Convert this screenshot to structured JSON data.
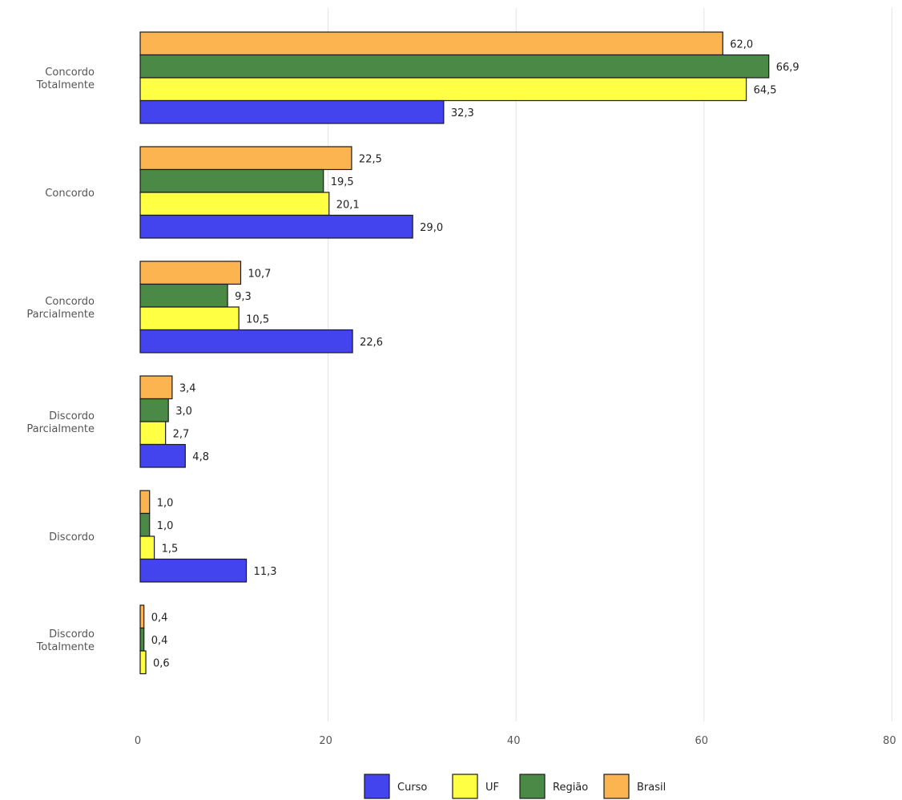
{
  "chart_data": {
    "type": "bar",
    "orientation": "horizontal",
    "categories": [
      [
        "Concordo",
        "Totalmente"
      ],
      [
        "Concordo"
      ],
      [
        "Concordo",
        "Parcialmente"
      ],
      [
        "Discordo",
        "Parcialmente"
      ],
      [
        "Discordo"
      ],
      [
        "Discordo",
        "Totalmente"
      ]
    ],
    "series": [
      {
        "name": "Brasil",
        "color": "#fbb450",
        "values": [
          62.0,
          22.5,
          10.7,
          3.4,
          1.0,
          0.4
        ],
        "labels": [
          "62,0",
          "22,5",
          "10,7",
          "3,4",
          "1,0",
          "0,4"
        ]
      },
      {
        "name": "Região",
        "color": "#4a8a46",
        "values": [
          66.9,
          19.5,
          9.3,
          3.0,
          1.0,
          0.4
        ],
        "labels": [
          "66,9",
          "19,5",
          "9,3",
          "3,0",
          "1,0",
          "0,4"
        ]
      },
      {
        "name": "UF",
        "color": "#ffff44",
        "values": [
          64.5,
          20.1,
          10.5,
          2.7,
          1.5,
          0.6
        ],
        "labels": [
          "64,5",
          "20,1",
          "10,5",
          "2,7",
          "1,5",
          "0,6"
        ]
      },
      {
        "name": "Curso",
        "color": "#4444ee",
        "values": [
          32.3,
          29.0,
          22.6,
          4.8,
          11.3,
          null
        ],
        "labels": [
          "32,3",
          "29,0",
          "22,6",
          "4,8",
          "11,3",
          ""
        ]
      }
    ],
    "xlim": [
      0,
      80
    ],
    "x_ticks": [
      0,
      20,
      40,
      60,
      80
    ],
    "x_tick_labels": [
      "0",
      "20",
      "40",
      "60",
      "80"
    ],
    "grid": true,
    "legend": {
      "placement": "bottom",
      "order": [
        "Curso",
        "UF",
        "Região",
        "Brasil"
      ]
    },
    "title": "",
    "xlabel": "",
    "ylabel": ""
  }
}
